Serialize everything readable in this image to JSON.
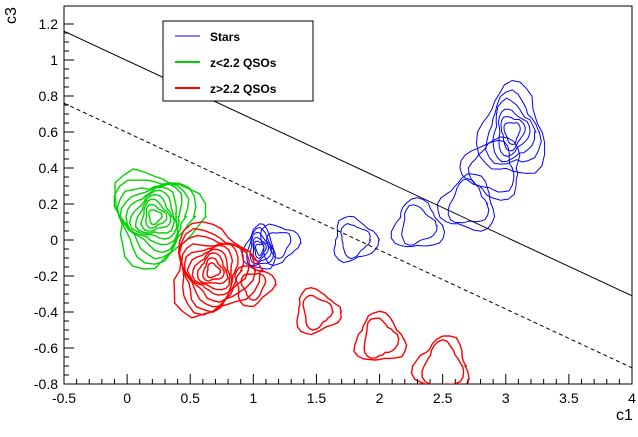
{
  "chart_data": {
    "type": "contour",
    "xlabel": "c1",
    "ylabel": "c3",
    "xlim": [
      -0.5,
      4.0
    ],
    "ylim": [
      -0.8,
      1.3
    ],
    "x_ticks": [
      "-0.5",
      "0",
      "0.5",
      "1",
      "1.5",
      "2",
      "2.5",
      "3",
      "3.5",
      "4"
    ],
    "y_ticks": [
      "-0.8",
      "-0.6",
      "-0.4",
      "-0.2",
      "0",
      "0.2",
      "0.4",
      "0.6",
      "0.8",
      "1",
      "1.2"
    ],
    "grid": false,
    "legend_position": "top-left",
    "colors": {
      "stars": "#0000ff",
      "low_z": "#00d400",
      "high_z": "#ff0000",
      "axis": "#000000"
    },
    "series": [
      {
        "name": "Stars",
        "color": "#0000ff",
        "role": "contour",
        "peaks": [
          {
            "x": 3.05,
            "y": 0.6,
            "levels": [
              0.06,
              0.09,
              0.12,
              0.16,
              0.2,
              0.25
            ]
          },
          {
            "x": 1.05,
            "y": -0.05,
            "levels": [
              0.03,
              0.045,
              0.06,
              0.08,
              0.1,
              0.12
            ]
          }
        ],
        "bridge": [
          [
            1.2,
            -0.02
          ],
          [
            1.8,
            0.0
          ],
          [
            2.3,
            0.08
          ],
          [
            2.7,
            0.2
          ],
          [
            2.9,
            0.4
          ]
        ]
      },
      {
        "name": "z<2.2 QSOs",
        "color": "#00d400",
        "role": "contour",
        "peaks": [
          {
            "x": 0.22,
            "y": 0.13,
            "levels": [
              0.05,
              0.08,
              0.11,
              0.14,
              0.17,
              0.2,
              0.23,
              0.26,
              0.3,
              0.34
            ]
          }
        ]
      },
      {
        "name": "z>2.2 QSOs",
        "color": "#ff0000",
        "role": "contour",
        "peaks": [
          {
            "x": 0.68,
            "y": -0.17,
            "levels": [
              0.05,
              0.08,
              0.11,
              0.14,
              0.17,
              0.2,
              0.23,
              0.26,
              0.29,
              0.33
            ]
          }
        ],
        "tail": [
          [
            1.0,
            -0.25
          ],
          [
            1.5,
            -0.4
          ],
          [
            2.0,
            -0.55
          ],
          [
            2.5,
            -0.7
          ]
        ]
      }
    ],
    "lines": [
      {
        "style": "solid",
        "color": "#000000",
        "points": [
          [
            -0.5,
            1.16
          ],
          [
            4.0,
            -0.31
          ]
        ]
      },
      {
        "style": "dashed",
        "color": "#000000",
        "points": [
          [
            -0.5,
            0.76
          ],
          [
            4.0,
            -0.71
          ]
        ]
      }
    ]
  }
}
